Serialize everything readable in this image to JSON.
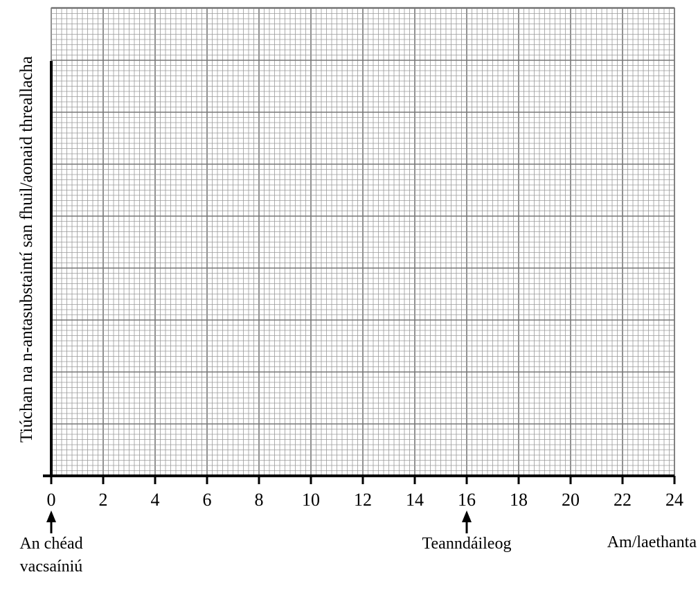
{
  "chart_data": {
    "type": "line",
    "title": "",
    "xlabel": "Am/laethanta",
    "ylabel": "Tiúchan na n-antasubstaintí san fhuil/aonaid threallacha",
    "xlim": [
      0,
      24
    ],
    "x_ticks": [
      "0",
      "2",
      "4",
      "6",
      "8",
      "10",
      "12",
      "14",
      "16",
      "18",
      "20",
      "22",
      "24"
    ],
    "grid": true,
    "series": [],
    "annotations": [
      {
        "x": 0,
        "text_lines": [
          "An chéad",
          "vacsaíniú"
        ]
      },
      {
        "x": 16,
        "text_lines": [
          "Teanndáileog"
        ]
      }
    ],
    "colors": {
      "grid_minor": "#9a9a9a",
      "grid_major": "#777777",
      "axis": "#000000"
    }
  }
}
